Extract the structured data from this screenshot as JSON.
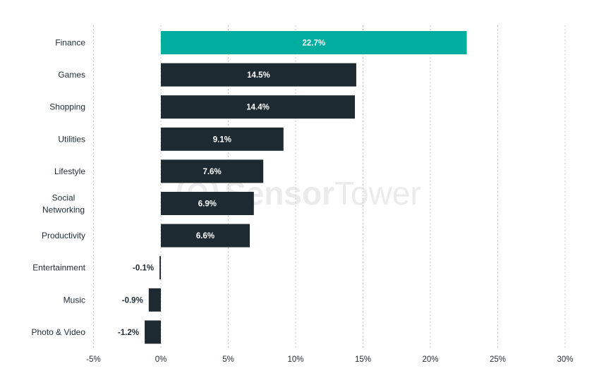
{
  "watermark": {
    "part1": "Sensor",
    "part2": "Tower"
  },
  "colors": {
    "highlight": "#00ad9f",
    "bar": "#1e2a32",
    "text": "#1f2b33",
    "grid": "#c4c4c4"
  },
  "chart_data": {
    "type": "bar",
    "orientation": "horizontal",
    "title": "",
    "xlabel": "",
    "ylabel": "",
    "xlim": [
      -5,
      30
    ],
    "x_ticks": [
      -5,
      0,
      5,
      10,
      15,
      20,
      25,
      30
    ],
    "x_tick_labels": [
      "-5%",
      "0%",
      "5%",
      "10%",
      "15%",
      "20%",
      "25%",
      "30%"
    ],
    "grid": "vertical dotted",
    "categories": [
      "Finance",
      "Games",
      "Shopping",
      "Utilities",
      "Lifestyle",
      "Social Networking",
      "Productivity",
      "Entertainment",
      "Music",
      "Photo & Video"
    ],
    "category_lines": [
      [
        "Finance"
      ],
      [
        "Games"
      ],
      [
        "Shopping"
      ],
      [
        "Utilities"
      ],
      [
        "Lifestyle"
      ],
      [
        "Social",
        "Networking"
      ],
      [
        "Productivity"
      ],
      [
        "Entertainment"
      ],
      [
        "Music"
      ],
      [
        "Photo & Video"
      ]
    ],
    "values": [
      22.7,
      14.5,
      14.4,
      9.1,
      7.6,
      6.9,
      6.6,
      -0.1,
      -0.9,
      -1.2
    ],
    "value_labels": [
      "22.7%",
      "14.5%",
      "14.4%",
      "9.1%",
      "7.6%",
      "6.9%",
      "6.6%",
      "-0.1%",
      "-0.9%",
      "-1.2%"
    ],
    "highlight_index": 0
  }
}
